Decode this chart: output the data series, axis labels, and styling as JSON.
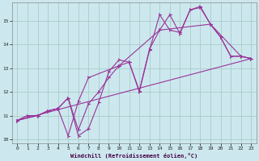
{
  "background_color": "#cce8ee",
  "grid_color": "#aaccc8",
  "line_color": "#993399",
  "xlabel": "Windchill (Refroidissement éolien,°C)",
  "xlim": [
    -0.5,
    23.5
  ],
  "ylim": [
    9.85,
    15.75
  ],
  "yticks": [
    10,
    11,
    12,
    13,
    14,
    15
  ],
  "xticks": [
    0,
    1,
    2,
    3,
    4,
    5,
    6,
    7,
    8,
    9,
    10,
    11,
    12,
    13,
    14,
    15,
    16,
    17,
    18,
    19,
    20,
    21,
    22,
    23
  ],
  "line1_x": [
    0,
    1,
    2,
    3,
    4,
    5,
    6,
    7,
    8,
    9,
    10,
    11,
    12,
    13,
    14,
    15,
    16,
    17,
    18,
    19,
    20,
    21,
    22,
    23
  ],
  "line1_y": [
    10.8,
    11.0,
    11.0,
    11.2,
    11.3,
    11.75,
    10.15,
    10.45,
    11.55,
    12.85,
    13.35,
    13.25,
    12.0,
    13.75,
    15.25,
    14.6,
    14.5,
    15.45,
    15.6,
    14.85,
    14.3,
    13.5,
    13.5,
    13.4
  ],
  "line2_x": [
    0,
    1,
    2,
    3,
    4,
    5,
    6,
    7,
    8,
    9,
    10,
    11,
    12,
    13,
    14,
    15,
    16,
    17,
    18,
    19,
    20,
    21,
    22,
    23
  ],
  "line2_y": [
    10.8,
    11.0,
    11.0,
    11.2,
    11.3,
    11.75,
    10.4,
    11.5,
    12.0,
    12.6,
    13.1,
    13.25,
    12.05,
    13.8,
    14.6,
    15.25,
    14.45,
    15.45,
    15.55,
    14.85,
    14.3,
    13.5,
    13.5,
    13.4
  ],
  "line3_x": [
    0,
    2,
    3,
    4,
    5,
    6,
    7,
    10,
    14,
    19,
    22,
    23
  ],
  "line3_y": [
    10.8,
    11.0,
    11.2,
    11.3,
    10.15,
    11.6,
    12.6,
    13.1,
    14.6,
    14.85,
    13.5,
    13.4
  ],
  "line4_x": [
    0,
    23
  ],
  "line4_y": [
    10.8,
    13.4
  ]
}
